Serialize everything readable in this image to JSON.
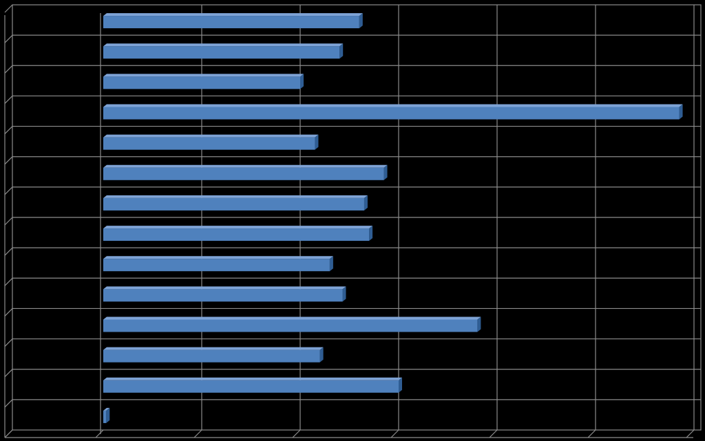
{
  "chart_data": {
    "type": "bar",
    "orientation": "horizontal",
    "style": "3d",
    "grid": true,
    "legend": "none",
    "title": "",
    "xlabel": "",
    "ylabel": "",
    "xlim": [
      0,
      60
    ],
    "categories": [
      "",
      "",
      "",
      "",
      "",
      "",
      "",
      "",
      "",
      "",
      "",
      "",
      "",
      ""
    ],
    "values": [
      26,
      24,
      20,
      58.5,
      21.5,
      28.5,
      26.5,
      27,
      23,
      24.3,
      38,
      22,
      30,
      0.3
    ],
    "colors": {
      "background": "#000000",
      "grid": "#8c8c8c",
      "bar_front": "#4f81bd",
      "bar_top": "#7ea3d6",
      "bar_side": "#2f5d93"
    }
  }
}
